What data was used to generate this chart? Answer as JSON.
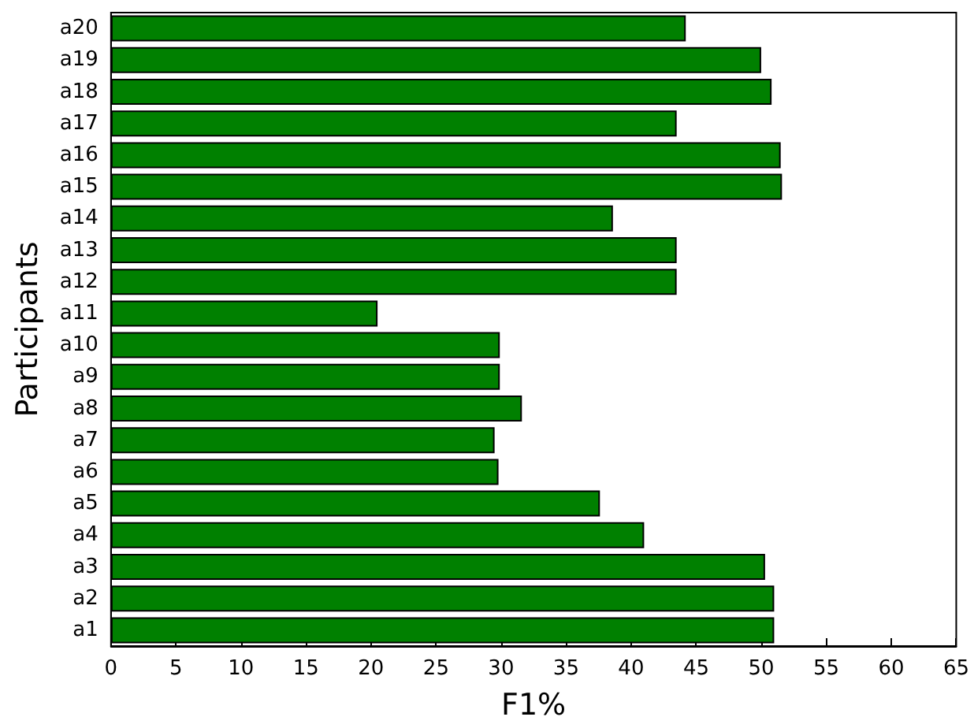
{
  "chart_data": {
    "type": "bar",
    "orientation": "horizontal",
    "xlabel": "F1%",
    "ylabel": "Participants",
    "categories": [
      "a20",
      "a19",
      "a18",
      "a17",
      "a16",
      "a15",
      "a14",
      "a13",
      "a12",
      "a11",
      "a10",
      "a9",
      "a8",
      "a7",
      "a6",
      "a5",
      "a4",
      "a3",
      "a2",
      "a1"
    ],
    "values": [
      44.2,
      50.0,
      50.8,
      43.5,
      51.5,
      51.6,
      38.6,
      43.5,
      43.5,
      20.5,
      29.9,
      29.9,
      31.6,
      29.5,
      29.8,
      37.6,
      41.0,
      50.3,
      51.0,
      51.0
    ],
    "color": "#008000",
    "xlim": [
      0,
      65
    ],
    "xticks": [
      0,
      5,
      10,
      15,
      20,
      25,
      30,
      35,
      40,
      45,
      50,
      55,
      60,
      65
    ],
    "grid": false
  }
}
